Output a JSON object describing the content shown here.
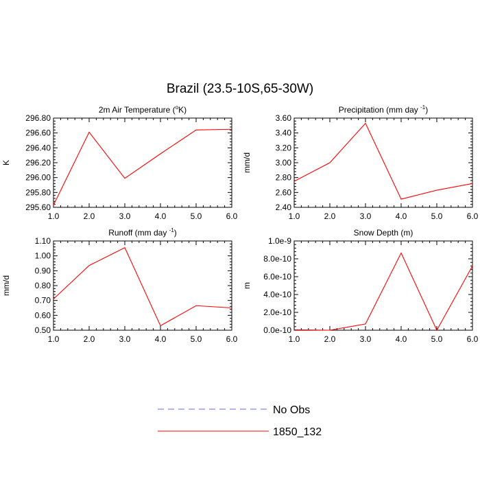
{
  "figure": {
    "title": "Brazil (23.5-10S,65-30W)"
  },
  "chart_data": [
    {
      "type": "line",
      "title": "2m Air Temperature",
      "title_unit": "K",
      "title_unit_prefix": "o",
      "ylabel": "K",
      "x": [
        1.0,
        2.0,
        3.0,
        4.0,
        5.0,
        6.0
      ],
      "xlim": [
        1.0,
        6.0
      ],
      "xticks": [
        "1.0",
        "2.0",
        "3.0",
        "4.0",
        "5.0",
        "6.0"
      ],
      "ylim": [
        295.6,
        296.8
      ],
      "yticks": [
        "295.60",
        "295.80",
        "296.00",
        "296.20",
        "296.40",
        "296.60",
        "296.80"
      ],
      "series": [
        {
          "name": "1850_132",
          "color": "#ff0000",
          "values": [
            295.63,
            296.61,
            295.99,
            296.32,
            296.64,
            296.65
          ]
        }
      ]
    },
    {
      "type": "line",
      "title": "Precipitation (mm day",
      "title_sup": "-1",
      "title_suffix": ")",
      "ylabel": "mm/d",
      "x": [
        1.0,
        2.0,
        3.0,
        4.0,
        5.0,
        6.0
      ],
      "xlim": [
        1.0,
        6.0
      ],
      "xticks": [
        "1.0",
        "2.0",
        "3.0",
        "4.0",
        "5.0",
        "6.0"
      ],
      "ylim": [
        2.4,
        3.6
      ],
      "yticks": [
        "2.40",
        "2.60",
        "2.80",
        "3.00",
        "3.20",
        "3.40",
        "3.60"
      ],
      "series": [
        {
          "name": "1850_132",
          "color": "#ff0000",
          "values": [
            2.75,
            3.0,
            3.53,
            2.51,
            2.63,
            2.72
          ]
        }
      ]
    },
    {
      "type": "line",
      "title": "Runoff (mm day",
      "title_sup": "-1",
      "title_suffix": ")",
      "ylabel": "mm/d",
      "x": [
        1.0,
        2.0,
        3.0,
        4.0,
        5.0,
        6.0
      ],
      "xlim": [
        1.0,
        6.0
      ],
      "xticks": [
        "1.0",
        "2.0",
        "3.0",
        "4.0",
        "5.0",
        "6.0"
      ],
      "ylim": [
        0.5,
        1.1
      ],
      "yticks": [
        "0.50",
        "0.60",
        "0.70",
        "0.80",
        "0.90",
        "1.00",
        "1.10"
      ],
      "series": [
        {
          "name": "1850_132",
          "color": "#ff0000",
          "values": [
            0.71,
            0.935,
            1.055,
            0.53,
            0.665,
            0.65
          ]
        }
      ]
    },
    {
      "type": "line",
      "title": "Snow Depth (m)",
      "ylabel": "m",
      "x": [
        1.0,
        2.0,
        3.0,
        4.0,
        5.0,
        6.0
      ],
      "xlim": [
        1.0,
        6.0
      ],
      "xticks": [
        "1.0",
        "2.0",
        "3.0",
        "4.0",
        "5.0",
        "6.0"
      ],
      "ylim": [
        0,
        1e-09
      ],
      "yticks": [
        "0.0e-10",
        "2.0e-10",
        "4.0e-10",
        "6.0e-10",
        "8.0e-10",
        "1.0e-9"
      ],
      "series": [
        {
          "name": "1850_132",
          "color": "#ff0000",
          "values": [
            5e-12,
            0,
            7e-11,
            8.65e-10,
            0,
            7.2e-10
          ]
        }
      ]
    }
  ],
  "legend": {
    "items": [
      {
        "label": "No Obs",
        "color": "#6666ff",
        "dash": true
      },
      {
        "label": "1850_132",
        "color": "#ff0000",
        "dash": false
      }
    ]
  }
}
